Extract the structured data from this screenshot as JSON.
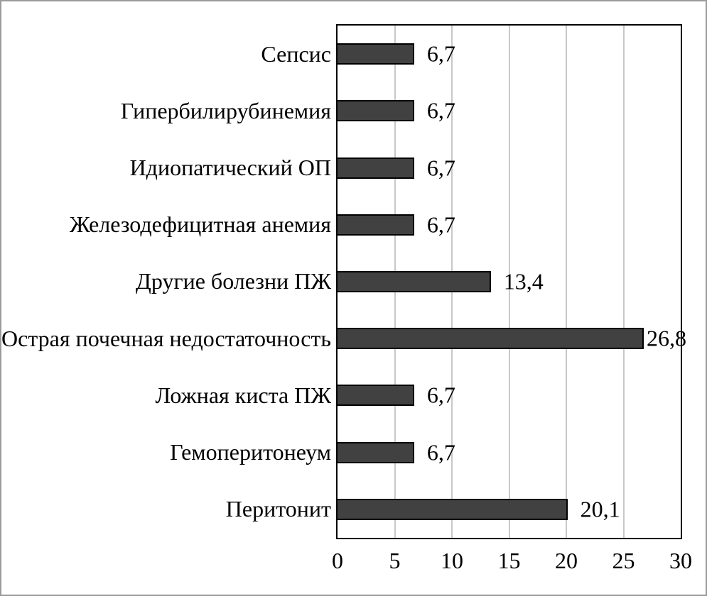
{
  "chart_data": {
    "type": "bar",
    "orientation": "horizontal",
    "title": "",
    "xlabel": "",
    "ylabel": "",
    "categories": [
      "Сепсис",
      "Гипербилирубинемия",
      "Идиопатический ОП",
      "Железодефицитная анемия",
      "Другие болезни ПЖ",
      "Острая почечная недостаточность",
      "Ложная киста ПЖ",
      "Гемоперитонеум",
      "Перитонит"
    ],
    "values": [
      6.7,
      6.7,
      6.7,
      6.7,
      13.4,
      26.8,
      6.7,
      6.7,
      20.1
    ],
    "value_labels": [
      "6,7",
      "6,7",
      "6,7",
      "6,7",
      "13,4",
      "26,8",
      "6,7",
      "6,7",
      "20,1"
    ],
    "x_ticks": [
      "0",
      "5",
      "10",
      "15",
      "20",
      "25",
      "30"
    ],
    "x_tick_values": [
      0,
      5,
      10,
      15,
      20,
      25,
      30
    ],
    "xlim": [
      0,
      30
    ],
    "grid": {
      "vertical_gridlines": true,
      "interval": 5
    },
    "legend": {
      "visible": false
    },
    "colors": {
      "bar_fill": "#414141",
      "bar_border": "#000000",
      "gridline": "#c8c8c8",
      "plot_border": "#000000",
      "frame_border": "#9b9b9b",
      "background": "#ffffff",
      "text": "#000000"
    }
  }
}
